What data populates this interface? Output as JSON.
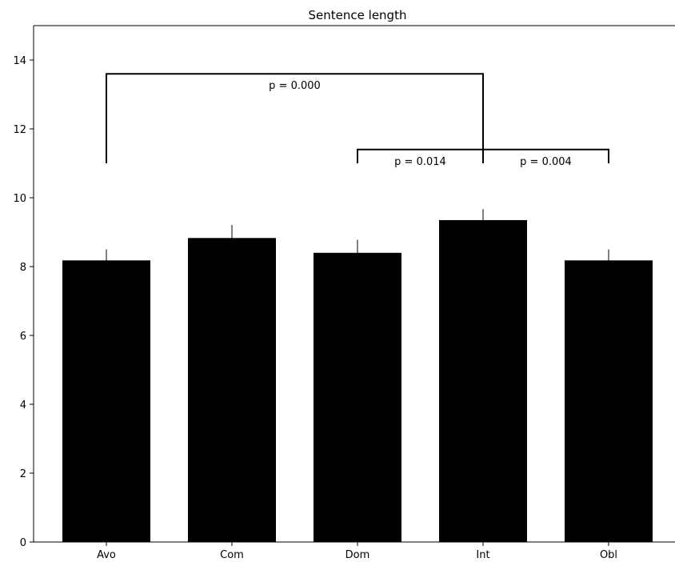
{
  "chart_data": {
    "type": "bar",
    "title": "Sentence length",
    "xlabel": "",
    "ylabel": "",
    "categories": [
      "Avo",
      "Com",
      "Dom",
      "Int",
      "Obl"
    ],
    "values": [
      8.18,
      8.83,
      8.4,
      9.35,
      8.18
    ],
    "errors": [
      0.32,
      0.38,
      0.38,
      0.32,
      0.32
    ],
    "ylim": [
      0,
      15
    ],
    "yticks": [
      0,
      2,
      4,
      6,
      8,
      10,
      12,
      14
    ],
    "ytick_labels": [
      "0",
      "2",
      "4",
      "6",
      "8",
      "10",
      "12",
      "14"
    ],
    "bar_color": "#000000",
    "grid": false,
    "annotations": [
      {
        "from": "Avo",
        "to": "Int",
        "base": 11.0,
        "top": 13.6,
        "text": "p = 0.000"
      },
      {
        "from": "Dom",
        "to": "Int",
        "base": 11.0,
        "top": 11.4,
        "text": "p = 0.014"
      },
      {
        "from": "Int",
        "to": "Obl",
        "base": 11.0,
        "top": 11.4,
        "text": "p = 0.004"
      }
    ]
  }
}
